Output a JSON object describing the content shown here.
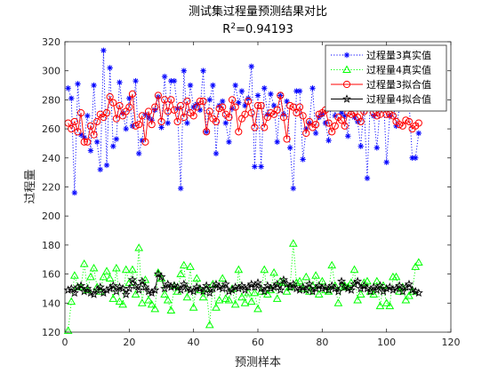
{
  "chart_data": {
    "type": "line",
    "title": "测试集过程量预测结果对比",
    "subtitle_prefix": "R",
    "subtitle_sup": "2",
    "subtitle_value": "=0.94193",
    "xlabel": "预测样本",
    "ylabel": "过程量",
    "xlim": [
      0,
      120
    ],
    "ylim": [
      120,
      320
    ],
    "x_ticks": [
      0,
      20,
      40,
      60,
      80,
      100,
      120
    ],
    "y_ticks": [
      120,
      140,
      160,
      180,
      200,
      220,
      240,
      260,
      280,
      300,
      320
    ],
    "grid": false,
    "legend_position": "top-right",
    "x": [
      1,
      2,
      3,
      4,
      5,
      6,
      7,
      8,
      9,
      10,
      11,
      12,
      13,
      14,
      15,
      16,
      17,
      18,
      19,
      20,
      21,
      22,
      23,
      24,
      25,
      26,
      27,
      28,
      29,
      30,
      31,
      32,
      33,
      34,
      35,
      36,
      37,
      38,
      39,
      40,
      41,
      42,
      43,
      44,
      45,
      46,
      47,
      48,
      49,
      50,
      51,
      52,
      53,
      54,
      55,
      56,
      57,
      58,
      59,
      60,
      61,
      62,
      63,
      64,
      65,
      66,
      67,
      68,
      69,
      70,
      71,
      72,
      73,
      74,
      75,
      76,
      77,
      78,
      79,
      80,
      81,
      82,
      83,
      84,
      85,
      86,
      87,
      88,
      89,
      90,
      91,
      92,
      93,
      94,
      95,
      96,
      97,
      98,
      99,
      100,
      101,
      102,
      103,
      104,
      105,
      106,
      107,
      108,
      109,
      110
    ],
    "series": [
      {
        "name": "过程量3真实值",
        "color": "#0000ff",
        "marker": "asterisk",
        "line_style": "dotted",
        "values": [
          288,
          281,
          216,
          291,
          256,
          254,
          269,
          245,
          290,
          251,
          232,
          314,
          235,
          302,
          248,
          253,
          292,
          271,
          260,
          281,
          262,
          293,
          243,
          252,
          270,
          268,
          266,
          273,
          282,
          261,
          296,
          264,
          293,
          293,
          274,
          219,
          300,
          264,
          290,
          275,
          277,
          273,
          300,
          258,
          280,
          290,
          243,
          276,
          279,
          264,
          251,
          274,
          290,
          278,
          286,
          276,
          281,
          303,
          234,
          283,
          234,
          288,
          270,
          284,
          276,
          251,
          283,
          270,
          279,
          247,
          219,
          286,
          286,
          239,
          260,
          264,
          288,
          257,
          268,
          270,
          264,
          252,
          288,
          269,
          282,
          271,
          269,
          255,
          279,
          268,
          265,
          248,
          277,
          226,
          283,
          269,
          247,
          275,
          285,
          237,
          269,
          279,
          262,
          274,
          288,
          282,
          279,
          240,
          240,
          257
        ]
      },
      {
        "name": "过程量4真实值",
        "color": "#00ff00",
        "marker": "triangle",
        "line_style": "dotted",
        "values": [
          121,
          141,
          159,
          151,
          151,
          167,
          149,
          158,
          164,
          151,
          148,
          158,
          162,
          157,
          143,
          164,
          141,
          139,
          163,
          154,
          163,
          146,
          178,
          140,
          156,
          142,
          139,
          136,
          161,
          157,
          146,
          142,
          135,
          152,
          148,
          160,
          166,
          144,
          165,
          137,
          157,
          149,
          144,
          150,
          125,
          153,
          137,
          142,
          157,
          143,
          142,
          150,
          139,
          163,
          144,
          140,
          147,
          141,
          147,
          136,
          148,
          163,
          146,
          149,
          161,
          143,
          155,
          154,
          148,
          151,
          181,
          154,
          155,
          150,
          158,
          148,
          152,
          159,
          146,
          155,
          149,
          148,
          166,
          152,
          140,
          151,
          152,
          151,
          154,
          163,
          142,
          146,
          154,
          155,
          148,
          146,
          155,
          138,
          152,
          140,
          138,
          158,
          158,
          148,
          151,
          142,
          145,
          148,
          165,
          168
        ]
      },
      {
        "name": "过程量3拟合值",
        "color": "#ff0000",
        "marker": "circle",
        "line_style": "solid",
        "values": [
          264,
          260,
          265,
          258,
          271,
          251,
          251,
          262,
          256,
          265,
          270,
          268,
          271,
          282,
          278,
          267,
          276,
          269,
          272,
          275,
          284,
          262,
          263,
          269,
          251,
          272,
          263,
          275,
          283,
          265,
          280,
          272,
          280,
          273,
          265,
          276,
          268,
          279,
          271,
          269,
          275,
          279,
          279,
          258,
          272,
          267,
          265,
          274,
          275,
          270,
          268,
          280,
          275,
          258,
          267,
          270,
          279,
          271,
          261,
          276,
          276,
          261,
          268,
          271,
          270,
          273,
          283,
          268,
          253,
          276,
          275,
          271,
          275,
          269,
          257,
          265,
          261,
          263,
          270,
          271,
          273,
          264,
          258,
          262,
          268,
          266,
          262,
          271,
          270,
          271,
          268,
          265,
          272,
          276,
          275,
          271,
          269,
          270,
          275,
          270,
          270,
          269,
          265,
          263,
          262,
          266,
          265,
          260,
          262,
          264
        ]
      },
      {
        "name": "过程量4拟合值",
        "color": "#000000",
        "marker": "star",
        "line_style": "solid",
        "values": [
          149,
          150,
          147,
          151,
          152,
          148,
          150,
          147,
          146,
          149,
          151,
          147,
          149,
          150,
          152,
          148,
          151,
          150,
          146,
          150,
          156,
          152,
          149,
          155,
          151,
          148,
          147,
          149,
          160,
          158,
          150,
          153,
          151,
          152,
          151,
          149,
          153,
          150,
          149,
          148,
          151,
          150,
          148,
          152,
          147,
          150,
          153,
          151,
          150,
          153,
          148,
          149,
          151,
          150,
          152,
          149,
          151,
          153,
          151,
          154,
          150,
          148,
          152,
          150,
          151,
          153,
          149,
          156,
          153,
          151,
          153,
          150,
          149,
          151,
          149,
          153,
          148,
          150,
          152,
          150,
          151,
          149,
          152,
          150,
          148,
          155,
          151,
          150,
          149,
          153,
          155,
          150,
          152,
          150,
          148,
          151,
          149,
          152,
          148,
          150,
          151,
          149,
          150,
          152,
          148,
          151,
          153,
          149,
          148,
          147
        ]
      }
    ]
  }
}
